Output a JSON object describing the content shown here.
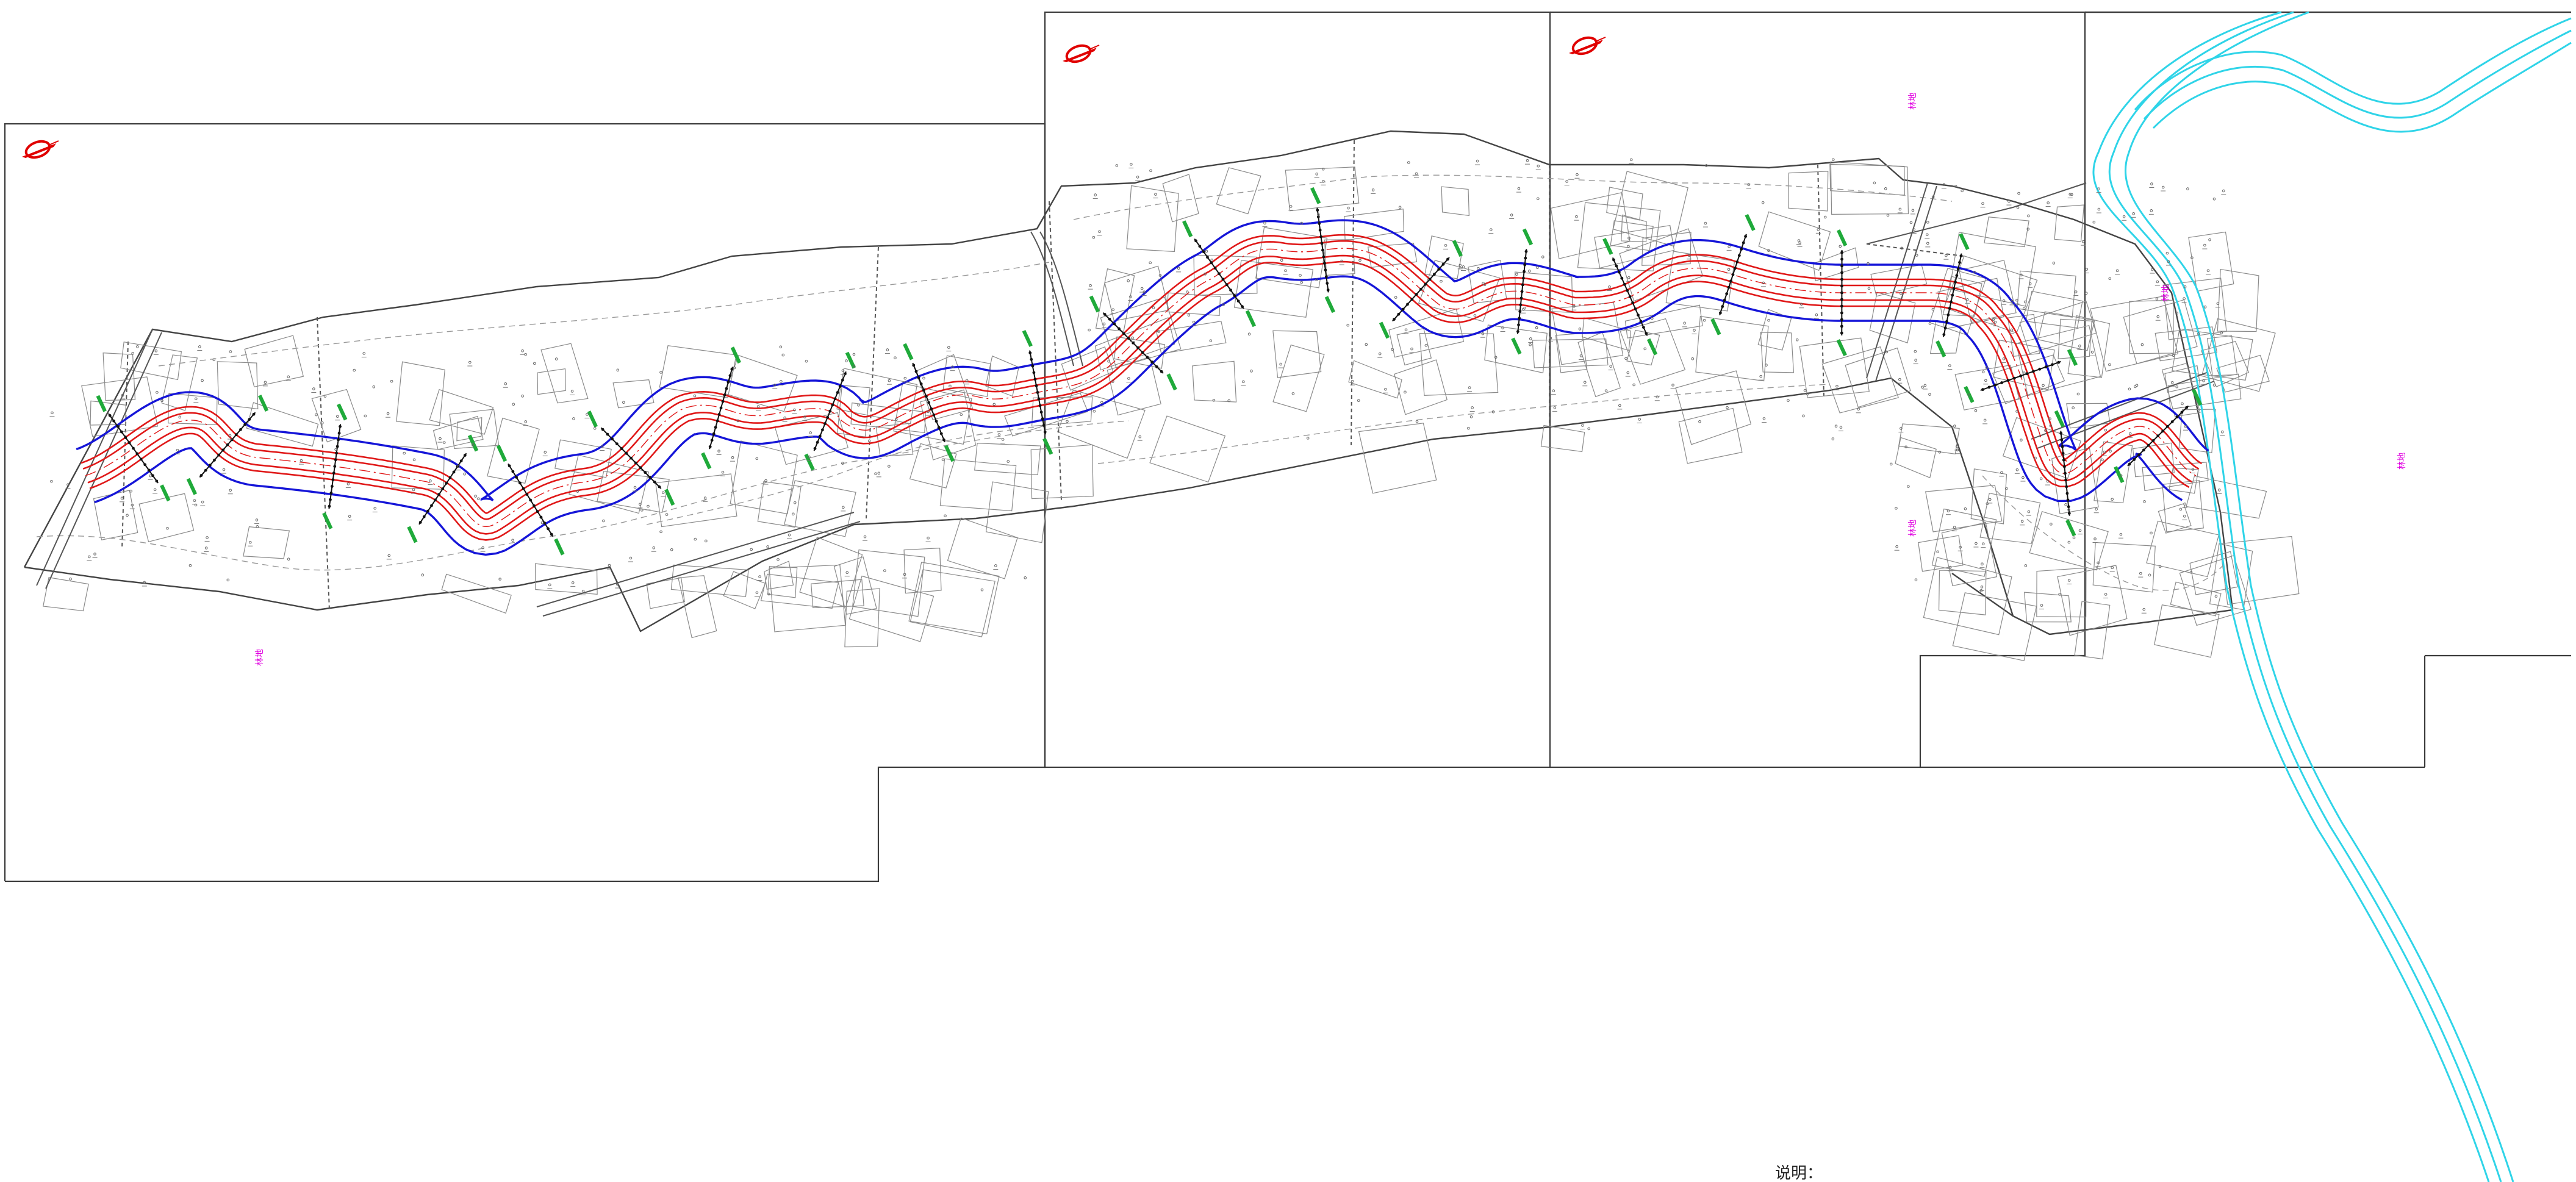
{
  "drawing": {
    "note_text": "说明：",
    "zone_labels": [
      "林地",
      "林地",
      "林地",
      "林地",
      "林地"
    ],
    "colors": {
      "bank_line": "#1515d8",
      "channel_line": "#e01818",
      "river": "#2fd4e8",
      "section_marker": "#1faa3a",
      "zone_label": "#e000e0",
      "north_arrow": "#e00000"
    },
    "icons": [
      "north-arrow-icon",
      "north-arrow-icon",
      "north-arrow-icon"
    ],
    "sheet_count": 4
  }
}
